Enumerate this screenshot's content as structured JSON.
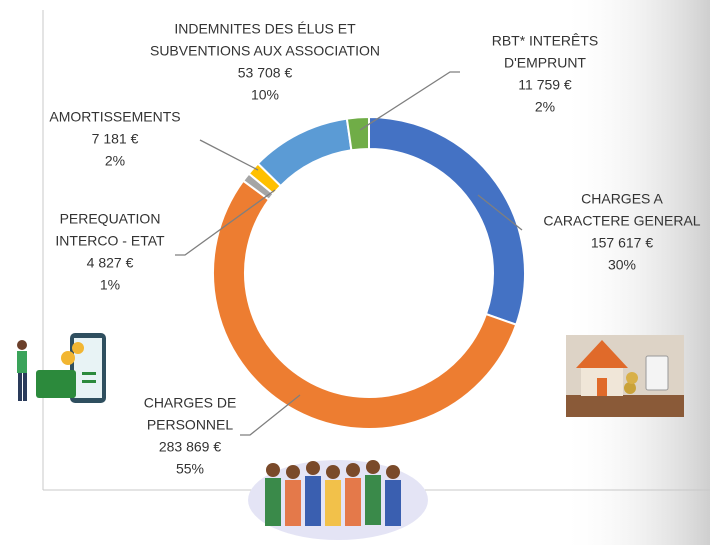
{
  "chart_data": {
    "type": "donut",
    "categories": [
      [
        "CHARGES A",
        "CARACTERE GENERAL"
      ],
      [
        "CHARGES DE",
        "PERSONNEL"
      ],
      [
        "PEREQUATION",
        "INTERCO - ETAT"
      ],
      [
        "AMORTISSEMENTS"
      ],
      [
        "INDEMNITES DES ÉLUS ET",
        "SUBVENTIONS AUX ASSOCIATION"
      ],
      [
        "RBT* INTERÊTS",
        "D'EMPRUNT"
      ]
    ],
    "values": [
      157617,
      283869,
      4827,
      7181,
      53708,
      11759
    ],
    "value_labels": [
      "157 617 €",
      "283 869 €",
      "4 827 €",
      "7 181 €",
      "53 708 €",
      "11 759 €"
    ],
    "percentages": [
      30,
      55,
      1,
      2,
      10,
      2
    ],
    "percentage_labels": [
      "30%",
      "55%",
      "1%",
      "2%",
      "10%",
      "2%"
    ],
    "colors": [
      "#4472c4",
      "#ed7d31",
      "#a5a5a5",
      "#ffc000",
      "#5b9bd5",
      "#70ad47"
    ]
  }
}
